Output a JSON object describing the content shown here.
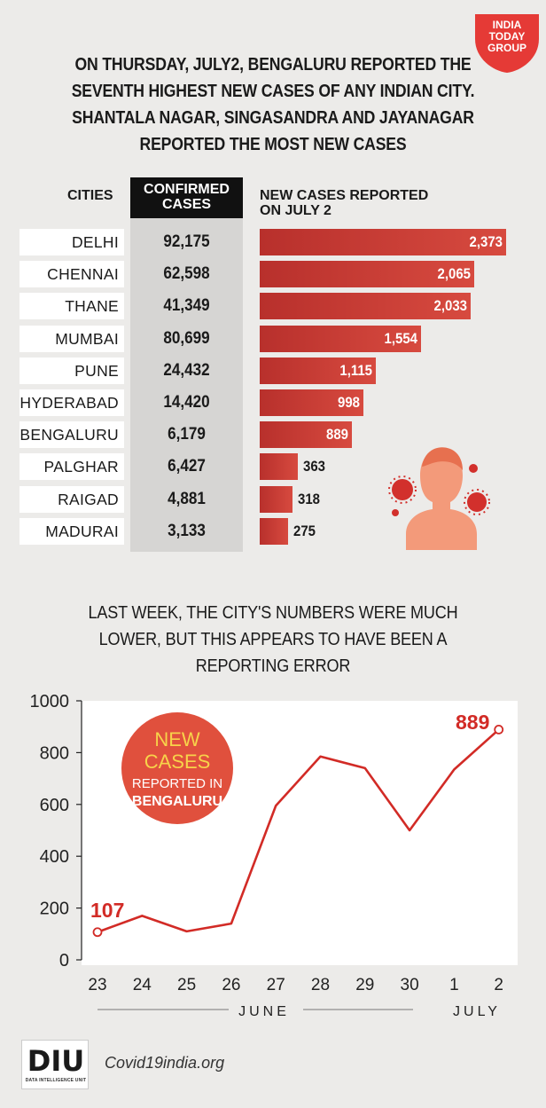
{
  "logo": {
    "line1": "INDIA",
    "line2": "TODAY",
    "line3": "GROUP",
    "color": "#e53a36"
  },
  "headline": [
    "ON THURSDAY, JULY2, BENGALURU REPORTED THE",
    "SEVENTH HIGHEST NEW CASES OF ANY INDIAN CITY.",
    "SHANTALA NAGAR, SINGASANDRA AND JAYANAGAR",
    "REPORTED THE MOST NEW CASES"
  ],
  "table": {
    "col_cities": "CITIES",
    "col_confirmed_1": "CONFIRMED",
    "col_confirmed_2": "CASES",
    "col_new_1": "NEW CASES REPORTED",
    "col_new_2": "ON JULY 2"
  },
  "chart_data": [
    {
      "type": "bar",
      "categories": [
        "DELHI",
        "CHENNAI",
        "THANE",
        "MUMBAI",
        "PUNE",
        "HYDERABAD",
        "BENGALURU",
        "PALGHAR",
        "RAIGAD",
        "MADURAI"
      ],
      "confirmed_cases": [
        92175,
        62598,
        41349,
        80699,
        24432,
        14420,
        6179,
        6427,
        4881,
        3133
      ],
      "confirmed_labels": [
        "92,175",
        "62,598",
        "41,349",
        "80,699",
        "24,432",
        "14,420",
        "6,179",
        "6,427",
        "4,881",
        "3,133"
      ],
      "values": [
        2373,
        2065,
        2033,
        1554,
        1115,
        998,
        889,
        363,
        318,
        275
      ],
      "value_labels": [
        "2,373",
        "2,065",
        "2,033",
        "1,554",
        "1,115",
        "998",
        "889",
        "363",
        "318",
        "275"
      ],
      "bar_color": "#c8372f"
    },
    {
      "type": "line",
      "title": "LAST WEEK, THE CITY'S NUMBERS WERE MUCH LOWER, BUT THIS APPEARS TO HAVE BEEN A REPORTING ERROR",
      "title_lines": [
        "LAST WEEK, THE CITY'S NUMBERS WERE MUCH",
        "LOWER, BUT THIS APPEARS TO HAVE BEEN A",
        "REPORTING ERROR"
      ],
      "x": [
        "23",
        "24",
        "25",
        "26",
        "27",
        "28",
        "29",
        "30",
        "1",
        "2"
      ],
      "values": [
        107,
        170,
        110,
        140,
        595,
        785,
        740,
        500,
        735,
        889
      ],
      "ylim": [
        0,
        1000
      ],
      "yticks": [
        "0",
        "200",
        "400",
        "600",
        "800",
        "1000"
      ],
      "month_labels": [
        "JUNE",
        "JULY"
      ],
      "annotations": {
        "start": "107",
        "end": "889"
      },
      "badge": {
        "line1": "NEW",
        "line2": "CASES",
        "line3": "REPORTED IN",
        "line4": "BENGALURU"
      },
      "line_color": "#d22b26"
    }
  ],
  "footer": {
    "logo_text": "DIU",
    "logo_sub": "DATA INTELLIGENCE UNIT",
    "source": "Covid19india.org"
  }
}
